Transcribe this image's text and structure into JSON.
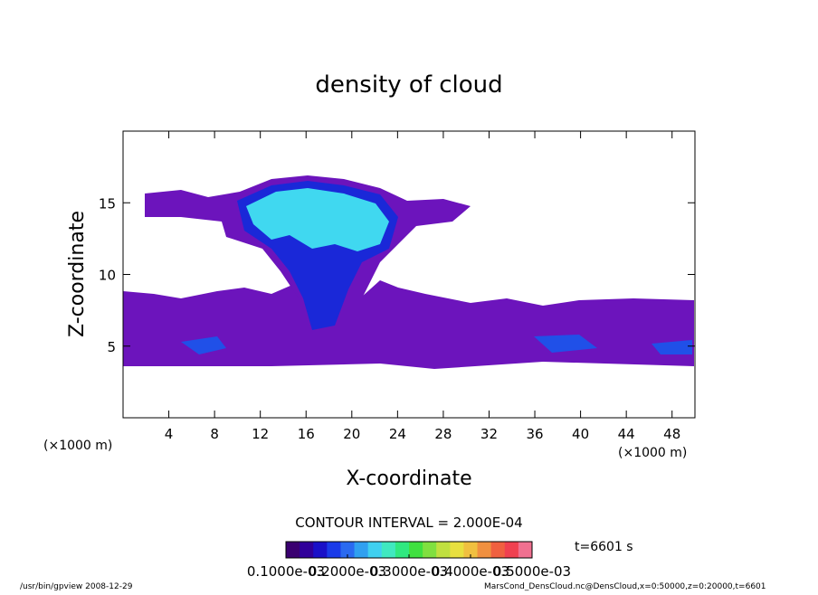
{
  "chart_data": {
    "type": "contour",
    "title": "density of cloud",
    "xlabel": "X-coordinate",
    "ylabel": "Z-coordinate",
    "xunit": "(×1000 m)",
    "yunit": "(×1000 m)",
    "xlim": [
      0,
      50
    ],
    "ylim": [
      0,
      20
    ],
    "xticks": [
      4,
      8,
      12,
      16,
      20,
      24,
      28,
      32,
      36,
      40,
      44,
      48
    ],
    "yticks": [
      5,
      10,
      15
    ],
    "contour_interval": "CONTOUR INTERVAL = 2.000E-04",
    "time_label": "t=6601 s",
    "colorbar": {
      "clim": [
        0.0001,
        0.0005
      ],
      "ticks": [
        {
          "value": 0.0001,
          "label": "0.1000e-03"
        },
        {
          "value": 0.0002,
          "label": "0.2000e-03"
        },
        {
          "value": 0.0003,
          "label": "0.3000e-03"
        },
        {
          "value": 0.0004,
          "label": "0.4000e-03"
        },
        {
          "value": 0.0005,
          "label": "0.5000e-03"
        }
      ],
      "colors": [
        "#3a0070",
        "#30009a",
        "#1a10c8",
        "#1a3ae8",
        "#2a6af0",
        "#30a0f0",
        "#40d0f0",
        "#40e8c0",
        "#30e880",
        "#40e040",
        "#80e040",
        "#c0e040",
        "#e8e040",
        "#f0c040",
        "#f09040",
        "#f06040",
        "#f04050",
        "#f07090"
      ]
    },
    "footer_left": "/usr/bin/gpview  2008-12-29",
    "footer_right": "MarsCond_DensCloud.nc@DensCloud,x=0:50000,z=0:20000,t=6601"
  }
}
